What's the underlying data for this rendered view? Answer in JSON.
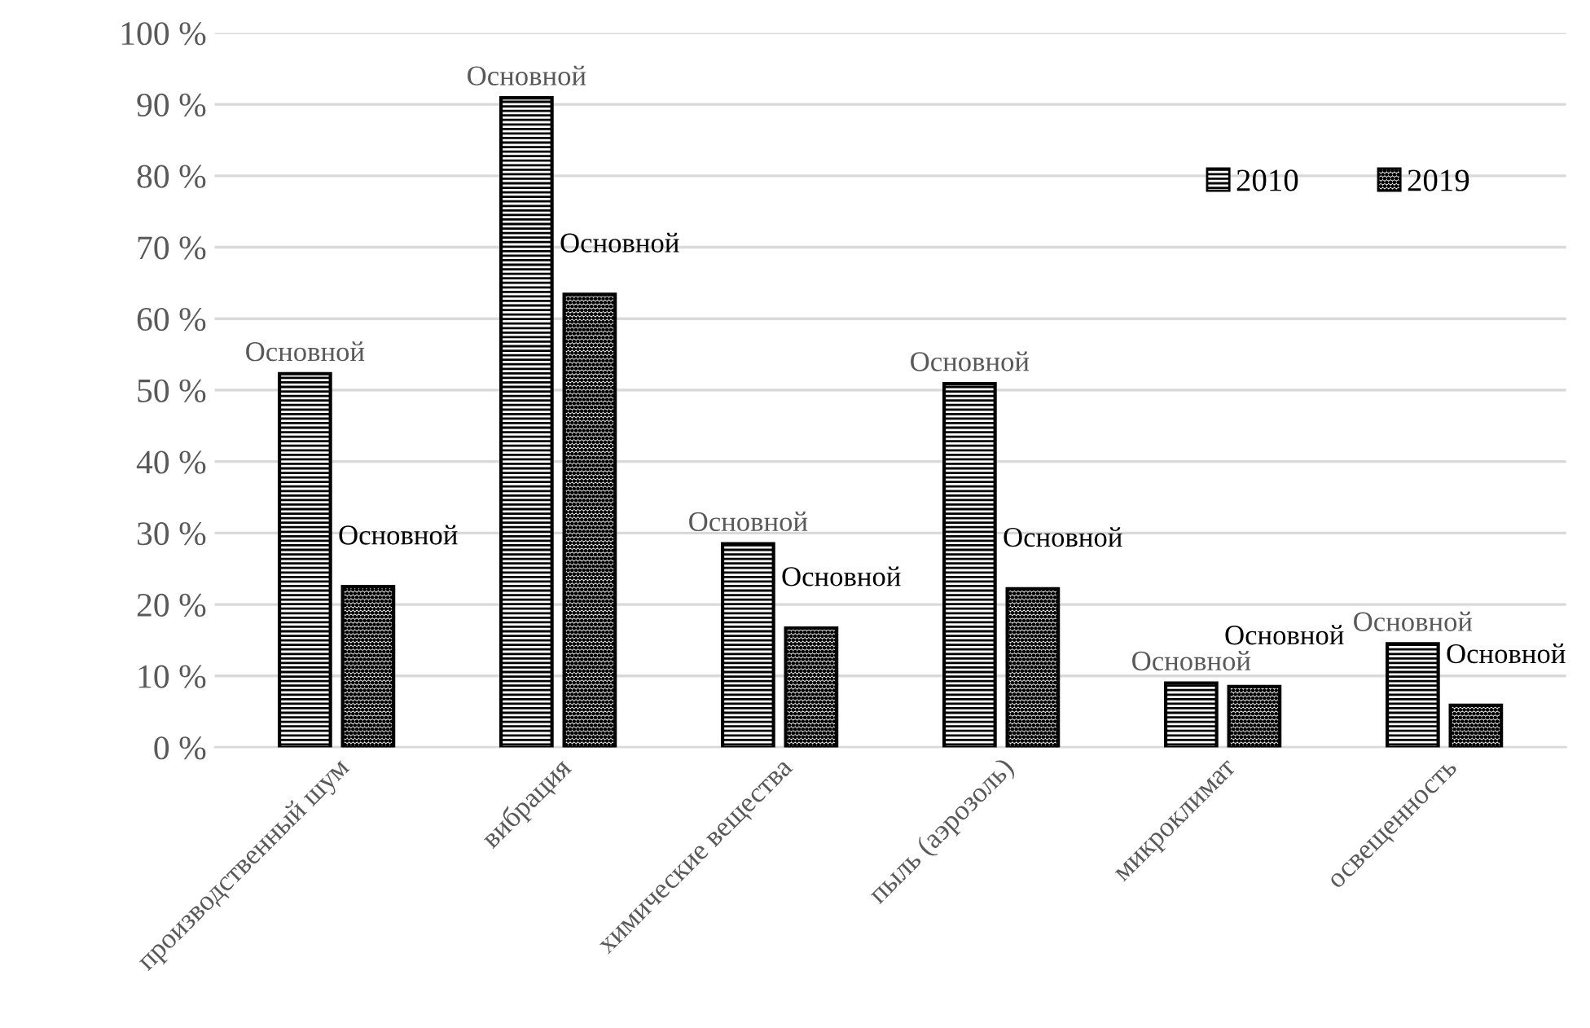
{
  "chart_data": {
    "type": "bar",
    "categories": [
      "производственный шум",
      "вибрация",
      "химические вещества",
      "пыль (аэрозоль)",
      "микроклимат",
      "освещенность"
    ],
    "series": [
      {
        "name": "2010",
        "color": "#000000",
        "values": [
          52.3,
          90.9,
          28.5,
          50.9,
          9.0,
          14.5
        ],
        "value_labels": [
          "Основной",
          "Основной",
          "Основной",
          "Основной",
          "Основной",
          "Основной"
        ]
      },
      {
        "name": "2019",
        "color": "#000000",
        "values": [
          22.5,
          63.4,
          16.7,
          22.2,
          8.5,
          5.9
        ],
        "value_labels": [
          "Основной",
          "Основной",
          "Основной",
          "Основной",
          "Основной",
          "Основной"
        ]
      }
    ],
    "ylim": [
      0,
      100
    ],
    "yticks": [
      {
        "value": 0,
        "label": "0 %"
      },
      {
        "value": 10,
        "label": "10 %"
      },
      {
        "value": 20,
        "label": "20 %"
      },
      {
        "value": 30,
        "label": "30 %"
      },
      {
        "value": 40,
        "label": "40 %"
      },
      {
        "value": 50,
        "label": "50 %"
      },
      {
        "value": 60,
        "label": "60 %"
      },
      {
        "value": 70,
        "label": "70 %"
      },
      {
        "value": 80,
        "label": "80 %"
      },
      {
        "value": 90,
        "label": "90 %"
      },
      {
        "value": 100,
        "label": "100 %"
      }
    ],
    "grid": "y",
    "legend": "top right"
  }
}
